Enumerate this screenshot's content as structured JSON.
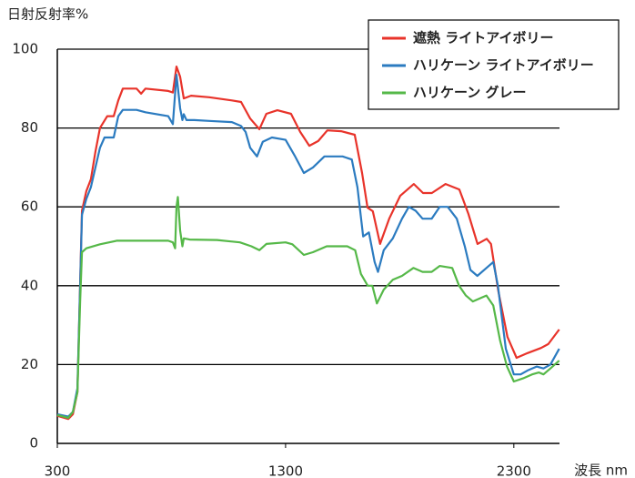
{
  "chart_data": {
    "type": "line",
    "y_label": "日射反射率%",
    "x_label": "波長 nm",
    "xlim": [
      300,
      2500
    ],
    "xticks": [
      300,
      1300,
      2300
    ],
    "ylim": [
      0,
      100
    ],
    "yticks": [
      0,
      20,
      40,
      60,
      80,
      100
    ],
    "grid": true,
    "legend": "upper right",
    "series": [
      {
        "name": "遮熱 ライトアイボリー",
        "color": "#e8332a",
        "x": [
          300,
          348,
          368,
          388,
          408,
          427,
          447,
          467,
          487,
          519,
          547,
          567,
          587,
          647,
          667,
          686,
          786,
          806,
          822,
          838,
          854,
          886,
          965,
          1065,
          1105,
          1145,
          1185,
          1216,
          1264,
          1324,
          1364,
          1404,
          1443,
          1483,
          1543,
          1603,
          1635,
          1659,
          1682,
          1714,
          1754,
          1802,
          1862,
          1902,
          1941,
          2001,
          2061,
          2101,
          2141,
          2181,
          2200,
          2232,
          2272,
          2312,
          2360,
          2419,
          2451,
          2499
        ],
        "values": [
          7,
          6.2,
          7.4,
          13,
          59,
          64,
          67,
          74,
          80,
          83,
          83,
          87,
          90,
          90,
          88.7,
          90,
          89.4,
          89,
          95.6,
          93,
          87.5,
          88.2,
          87.8,
          87,
          86.6,
          82.4,
          79.7,
          83.6,
          84.5,
          83.6,
          79,
          75.5,
          76.7,
          79.4,
          79.2,
          78.3,
          68.6,
          59.8,
          58.9,
          50.6,
          57,
          62.8,
          65.8,
          63.5,
          63.5,
          65.8,
          64.4,
          58.2,
          50.6,
          51.9,
          50.6,
          38.6,
          27,
          21.7,
          22.9,
          24.2,
          25.2,
          28.9
        ]
      },
      {
        "name": "ハリケーン ライトアイボリー",
        "color": "#2b7bc0",
        "x": [
          300,
          348,
          368,
          388,
          408,
          427,
          447,
          467,
          487,
          507,
          547,
          567,
          587,
          647,
          686,
          786,
          806,
          822,
          838,
          848,
          854,
          866,
          900,
          965,
          1065,
          1105,
          1125,
          1145,
          1175,
          1200,
          1240,
          1300,
          1340,
          1380,
          1420,
          1470,
          1550,
          1590,
          1615,
          1640,
          1665,
          1690,
          1705,
          1730,
          1770,
          1810,
          1840,
          1870,
          1900,
          1940,
          1975,
          2010,
          2050,
          2085,
          2110,
          2140,
          2180,
          2210,
          2230,
          2265,
          2300,
          2330,
          2360,
          2400,
          2430,
          2460,
          2499
        ],
        "values": [
          7.4,
          6.8,
          8,
          14,
          58,
          62,
          65,
          70,
          75,
          77.6,
          77.6,
          83,
          84.6,
          84.6,
          84,
          83,
          81,
          93.5,
          85,
          82,
          83.5,
          82,
          82,
          81.8,
          81.5,
          80.5,
          79,
          75,
          72.8,
          76.5,
          77.6,
          77,
          73,
          68.6,
          70,
          72.8,
          72.8,
          72,
          65,
          52.5,
          53.5,
          46,
          43.5,
          49,
          52,
          57,
          60,
          59,
          57,
          57,
          60,
          60,
          57,
          50,
          44,
          42.5,
          44.5,
          46,
          40,
          24,
          17.5,
          17.5,
          18.5,
          19.5,
          19,
          20,
          24
        ]
      },
      {
        "name": "ハリケーン グレー",
        "color": "#55b848",
        "x": [
          300,
          348,
          368,
          388,
          400,
          408,
          427,
          487,
          560,
          650,
          786,
          806,
          816,
          822,
          828,
          838,
          848,
          854,
          880,
          1000,
          1100,
          1150,
          1185,
          1216,
          1300,
          1330,
          1380,
          1420,
          1480,
          1570,
          1605,
          1630,
          1660,
          1680,
          1700,
          1730,
          1770,
          1810,
          1860,
          1900,
          1940,
          1975,
          2030,
          2060,
          2090,
          2120,
          2160,
          2180,
          2210,
          2240,
          2270,
          2300,
          2340,
          2380,
          2410,
          2430,
          2460,
          2499
        ],
        "values": [
          7.2,
          6.5,
          8,
          13,
          36,
          48.5,
          49.5,
          50.5,
          51.4,
          51.4,
          51.4,
          51,
          49.5,
          60,
          62.5,
          54,
          50,
          52,
          51.7,
          51.6,
          51,
          50,
          49,
          50.6,
          51,
          50.5,
          47.8,
          48.5,
          50,
          50,
          49,
          43,
          40,
          40,
          35.5,
          39,
          41.5,
          42.5,
          44.5,
          43.5,
          43.5,
          45,
          44.5,
          40,
          37.5,
          36,
          37,
          37.5,
          35,
          26,
          19.5,
          15.7,
          16.5,
          17.5,
          18,
          17.5,
          19,
          21
        ]
      }
    ]
  }
}
